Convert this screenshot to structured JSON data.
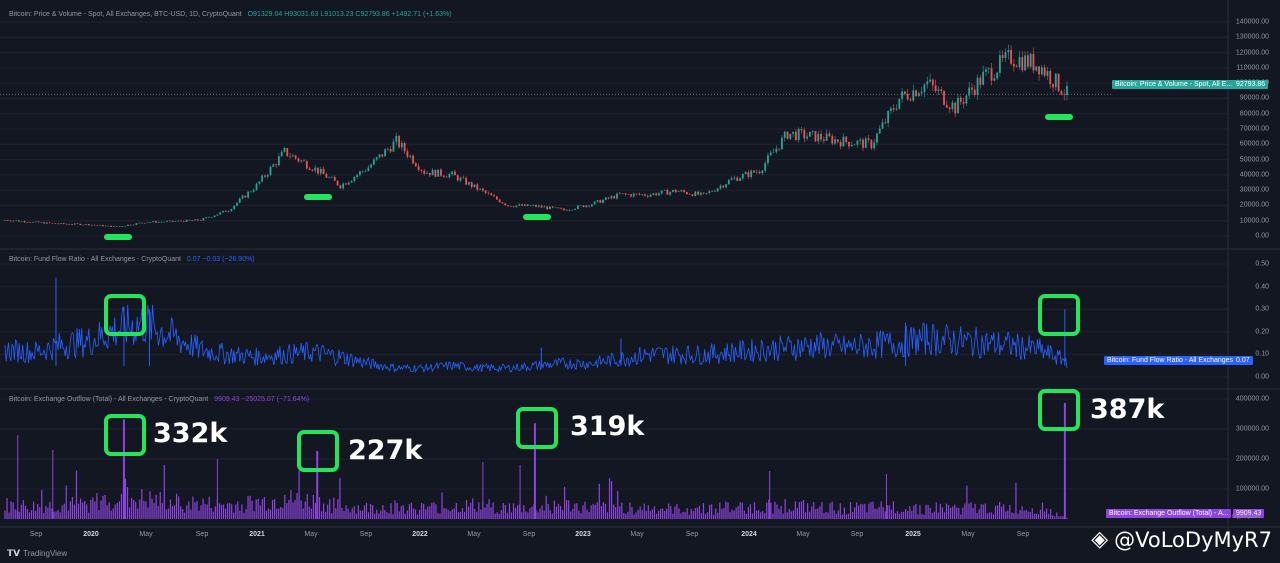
{
  "panes": {
    "price": {
      "title": "Bitcoin: Price & Volume - Spot, All Exchanges, BTC-USD, 1D, CryptoQuant",
      "ohlc": "O91329.04  H93031.63  L91013.23  C92793.86  +1492.71 (+1.63%)",
      "tag_label": "Bitcoin: Price & Volume - Spot, All E...",
      "tag_value": "92793.86",
      "color": "#26a69a"
    },
    "flow": {
      "title": "Bitcoin: Fund Flow Ratio - All Exchanges - CryptoQuant",
      "values": "0.07  −0.03 (−26.90%)",
      "tag_label": "Bitcoin: Fund Flow Ratio - All Exchanges",
      "tag_value": "0.07",
      "color": "#2962ff"
    },
    "outflow": {
      "title": "Bitcoin: Exchange Outflow (Total) - All Exchanges - CryptoQuant",
      "values": "9909.43  −25025.07 (−71.64%)",
      "tag_label": "Bitcoin: Exchange Outflow (Total) - A...",
      "tag_value": "9909.43",
      "color": "#8e44e0"
    }
  },
  "annotations": {
    "a1": "332k",
    "a2": "227k",
    "a3": "319k",
    "a4": "387k"
  },
  "footer": {
    "brand": "TradingView",
    "watermark": "@VoLoDyMyR7",
    "source": "CryptoQuant"
  },
  "colors": {
    "background": "#131722",
    "up": "#26a69a",
    "down": "#ef5350",
    "highlight": "#22e55b",
    "flow": "#2962ff",
    "outflow": "#8e44e0"
  },
  "chart_data": [
    {
      "type": "candlestick",
      "title": "Bitcoin: Price & Volume - Spot, All Exchanges, BTC-USD, 1D, CryptoQuant",
      "yticks": [
        "0.00",
        "10000.00",
        "20000.00",
        "30000.00",
        "40000.00",
        "50000.00",
        "60000.00",
        "70000.00",
        "80000.00",
        "90000.00",
        "100000.00",
        "110000.00",
        "120000.00",
        "130000.00",
        "140000.00"
      ],
      "ylim": [
        -5000,
        140000
      ],
      "x": [
        "2019-07",
        "2019-09",
        "2019-11",
        "2020-01",
        "2020-03",
        "2020-05",
        "2020-07",
        "2020-09",
        "2020-11",
        "2021-01",
        "2021-03",
        "2021-05",
        "2021-07",
        "2021-09",
        "2021-11",
        "2022-01",
        "2022-03",
        "2022-05",
        "2022-07",
        "2022-09",
        "2022-11",
        "2023-01",
        "2023-03",
        "2023-05",
        "2023-07",
        "2023-09",
        "2023-11",
        "2024-01",
        "2024-03",
        "2024-05",
        "2024-07",
        "2024-09",
        "2024-11",
        "2025-01",
        "2025-03",
        "2025-05",
        "2025-07",
        "2025-09",
        "2025-11"
      ],
      "values": [
        10500,
        9000,
        8000,
        7500,
        6000,
        9000,
        9500,
        10500,
        17000,
        33000,
        55000,
        45000,
        33000,
        45000,
        62000,
        42000,
        40000,
        30000,
        20000,
        19500,
        17000,
        21000,
        27000,
        27000,
        29500,
        26500,
        37000,
        43000,
        67000,
        65000,
        62000,
        60000,
        90000,
        100000,
        84000,
        104000,
        117000,
        112000,
        92793.86
      ],
      "last": 92793.86
    },
    {
      "type": "line",
      "title": "Bitcoin: Fund Flow Ratio - All Exchanges - CryptoQuant",
      "yticks": [
        "0.00",
        "0.10",
        "0.20",
        "0.30",
        "0.40",
        "0.50"
      ],
      "ylim": [
        0,
        0.5
      ],
      "x": [
        "2019-07",
        "2019-09",
        "2019-11",
        "2020-01",
        "2020-03",
        "2020-05",
        "2020-07",
        "2020-09",
        "2020-11",
        "2021-01",
        "2021-03",
        "2021-05",
        "2021-07",
        "2021-09",
        "2021-11",
        "2022-01",
        "2022-03",
        "2022-05",
        "2022-07",
        "2022-09",
        "2022-11",
        "2023-01",
        "2023-03",
        "2023-05",
        "2023-07",
        "2023-09",
        "2023-11",
        "2024-01",
        "2024-03",
        "2024-05",
        "2024-07",
        "2024-09",
        "2024-11",
        "2025-01",
        "2025-03",
        "2025-05",
        "2025-07",
        "2025-09",
        "2025-11"
      ],
      "values": [
        0.12,
        0.11,
        0.14,
        0.16,
        0.21,
        0.24,
        0.18,
        0.12,
        0.1,
        0.09,
        0.1,
        0.11,
        0.09,
        0.06,
        0.04,
        0.04,
        0.05,
        0.04,
        0.04,
        0.05,
        0.06,
        0.06,
        0.08,
        0.1,
        0.1,
        0.1,
        0.11,
        0.12,
        0.13,
        0.14,
        0.13,
        0.14,
        0.15,
        0.17,
        0.16,
        0.15,
        0.14,
        0.12,
        0.07
      ],
      "last": 0.07
    },
    {
      "type": "bar",
      "title": "Bitcoin: Exchange Outflow (Total) - All Exchanges - CryptoQuant",
      "yticks": [
        "100000.00",
        "200000.00",
        "300000.00",
        "400000.00"
      ],
      "ylim": [
        -20000,
        420000
      ],
      "x": [
        "2019-07",
        "2019-09",
        "2019-11",
        "2020-01",
        "2020-03",
        "2020-05",
        "2020-07",
        "2020-09",
        "2020-11",
        "2021-01",
        "2021-03",
        "2021-05",
        "2021-07",
        "2021-09",
        "2021-11",
        "2022-01",
        "2022-03",
        "2022-05",
        "2022-07",
        "2022-09",
        "2022-11",
        "2023-01",
        "2023-03",
        "2023-05",
        "2023-07",
        "2023-09",
        "2023-11",
        "2024-01",
        "2024-03",
        "2024-05",
        "2024-07",
        "2024-09",
        "2024-11",
        "2025-01",
        "2025-03",
        "2025-05",
        "2025-07",
        "2025-09",
        "2025-11"
      ],
      "values": [
        50000,
        45000,
        50000,
        55000,
        80000,
        70000,
        60000,
        55000,
        50000,
        60000,
        70000,
        65000,
        45000,
        40000,
        45000,
        40000,
        45000,
        50000,
        40000,
        40000,
        50000,
        40000,
        45000,
        40000,
        35000,
        40000,
        40000,
        45000,
        50000,
        40000,
        40000,
        40000,
        45000,
        40000,
        40000,
        40000,
        40000,
        40000,
        9909.43
      ],
      "peaks": [
        {
          "x": "2020-03",
          "value": 332000
        },
        {
          "x": "2021-05",
          "value": 227000
        },
        {
          "x": "2022-09",
          "value": 319000
        },
        {
          "x": "2025-11",
          "value": 387000
        }
      ],
      "last": 9909.43
    }
  ],
  "x_axis": [
    "Sep",
    "2020",
    "May",
    "Sep",
    "2021",
    "May",
    "Sep",
    "2022",
    "May",
    "Sep",
    "2023",
    "May",
    "Sep",
    "2024",
    "May",
    "Sep",
    "2025",
    "May",
    "Sep"
  ]
}
